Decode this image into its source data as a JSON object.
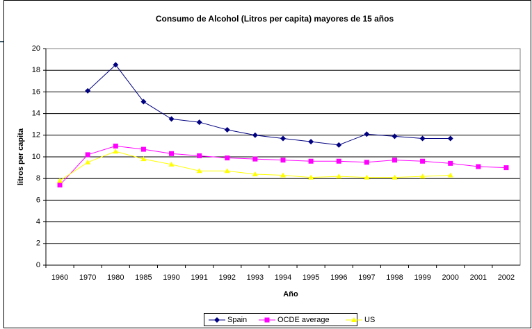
{
  "chart_data": {
    "type": "line",
    "title": "Consumo de Alcohol (Litros per capita) mayores de 15 años",
    "x_label": "Año",
    "y_label": "litros per capita",
    "categories": [
      "1960",
      "1970",
      "1980",
      "1985",
      "1990",
      "1991",
      "1992",
      "1993",
      "1994",
      "1995",
      "1996",
      "1997",
      "1998",
      "1999",
      "2000",
      "2001",
      "2002"
    ],
    "series": [
      {
        "name": "Spain",
        "color": "#000080",
        "marker": "diamond",
        "values": [
          null,
          16.1,
          18.5,
          15.1,
          13.5,
          13.2,
          12.5,
          12.0,
          11.7,
          11.4,
          11.1,
          12.1,
          11.9,
          11.7,
          11.7,
          null,
          null
        ]
      },
      {
        "name": "OCDE average",
        "color": "#ff00ff",
        "marker": "square",
        "values": [
          7.4,
          10.2,
          11.0,
          10.7,
          10.3,
          10.1,
          9.9,
          9.8,
          9.7,
          9.6,
          9.6,
          9.5,
          9.7,
          9.6,
          9.4,
          9.1,
          9.0
        ]
      },
      {
        "name": "US",
        "color": "#ffff00",
        "marker": "triangle",
        "values": [
          7.8,
          9.5,
          10.5,
          9.8,
          9.3,
          8.7,
          8.7,
          8.4,
          8.3,
          8.1,
          8.2,
          8.1,
          8.1,
          8.2,
          8.3,
          null,
          null
        ]
      }
    ],
    "ylim": [
      0,
      20
    ],
    "yticks": [
      0,
      2,
      4,
      6,
      8,
      10,
      12,
      14,
      16,
      18,
      20
    ],
    "grid": true,
    "legend": "bottom"
  }
}
